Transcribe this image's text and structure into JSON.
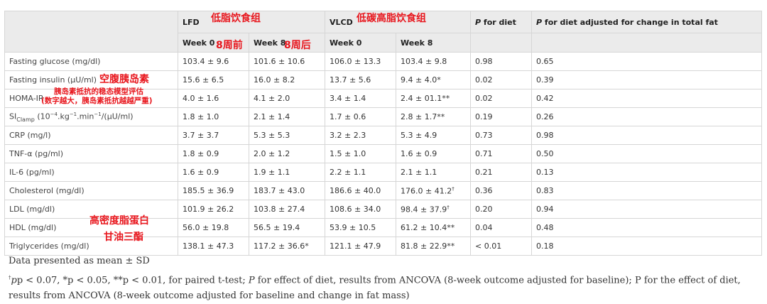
{
  "header": {
    "col_lfd": "LFD",
    "col_vlcd": "VLCD",
    "col_p_diet": "P for diet",
    "col_p_adjusted": "P for diet adjusted for change in total fat",
    "week0": "Week 0",
    "week8": "Week 8"
  },
  "rows": [
    {
      "label": "Fasting glucose (mg/dl)",
      "lfd_w0": "103.4 ± 9.6",
      "lfd_w8": "101.6 ± 10.6",
      "vlcd_w0": "106.0 ± 13.3",
      "vlcd_w8": "103.4 ± 9.8",
      "p_diet": "0.98",
      "p_adj": "0.65"
    },
    {
      "label": "Fasting insulin (µU/ml)",
      "lfd_w0": "15.6 ± 6.5",
      "lfd_w8": "16.0 ± 8.2",
      "vlcd_w0": "13.7 ± 5.6",
      "vlcd_w8": "9.4 ± 4.0*",
      "p_diet": "0.02",
      "p_adj": "0.39"
    },
    {
      "label": "HOMA-IR",
      "lfd_w0": "4.0 ± 1.6",
      "lfd_w8": "4.1 ± 2.0",
      "vlcd_w0": "3.4 ± 1.4",
      "vlcd_w8": "2.4 ± 01.1**",
      "p_diet": "0.02",
      "p_adj": "0.42"
    },
    {
      "label": "SI",
      "label_sub": "Clamp",
      "label_rest": " (10",
      "label_sup1": "−4",
      "label_rest2": ".kg",
      "label_sup2": "−1",
      "label_rest3": ".min",
      "label_sup3": "−1",
      "label_rest4": "/(µU/ml)",
      "lfd_w0": "1.8 ± 1.0",
      "lfd_w8": "2.1 ± 1.4",
      "vlcd_w0": "1.7 ± 0.6",
      "vlcd_w8": "2.8 ± 1.7**",
      "p_diet": "0.19",
      "p_adj": "0.26"
    },
    {
      "label": "CRP (mg/l)",
      "lfd_w0": "3.7 ± 3.7",
      "lfd_w8": "5.3 ± 5.3",
      "vlcd_w0": "3.2 ± 2.3",
      "vlcd_w8": "5.3 ± 4.9",
      "p_diet": "0.73",
      "p_adj": "0.98"
    },
    {
      "label": "TNF-α (pg/ml)",
      "lfd_w0": "1.8 ± 0.9",
      "lfd_w8": "2.0 ± 1.2",
      "vlcd_w0": "1.5 ± 1.0",
      "vlcd_w8": "1.6 ± 0.9",
      "p_diet": "0.71",
      "p_adj": "0.50"
    },
    {
      "label": "IL-6 (pg/ml)",
      "lfd_w0": "1.6 ± 0.9",
      "lfd_w8": "1.9 ± 1.1",
      "vlcd_w0": "2.2 ± 1.1",
      "vlcd_w8": "2.1 ± 1.1",
      "p_diet": "0.21",
      "p_adj": "0.13"
    },
    {
      "label": "Cholesterol (mg/dl)",
      "lfd_w0": "185.5 ± 36.9",
      "lfd_w8": "183.7 ± 43.0",
      "vlcd_w0": "186.6 ± 40.0",
      "vlcd_w8": "176.0 ± 41.2",
      "vlcd_w8_sup": "†",
      "p_diet": "0.36",
      "p_adj": "0.83"
    },
    {
      "label": "LDL (mg/dl)",
      "lfd_w0": "101.9 ± 26.2",
      "lfd_w8": "103.8 ± 27.4",
      "vlcd_w0": "108.6 ± 34.0",
      "vlcd_w8": "98.4 ± 37.9",
      "vlcd_w8_sup": "†",
      "p_diet": "0.20",
      "p_adj": "0.94"
    },
    {
      "label": "HDL (mg/dl)",
      "lfd_w0": "56.0 ± 19.8",
      "lfd_w8": "56.5 ± 19.4",
      "vlcd_w0": "53.9 ± 10.5",
      "vlcd_w8": "61.2 ± 10.4**",
      "p_diet": "0.04",
      "p_adj": "0.48"
    },
    {
      "label": "Triglycerides (mg/dl)",
      "lfd_w0": "138.1 ± 47.3",
      "lfd_w8": "117.2 ± 36.6*",
      "vlcd_w0": "121.1 ± 47.9",
      "vlcd_w8": "81.8 ± 22.9**",
      "p_diet": "< 0.01",
      "p_adj": "0.18"
    }
  ],
  "annotations": {
    "lfd": "低脂饮食组",
    "vlcd": "低碳高脂饮食组",
    "week0": "8周前",
    "week8": "8周后",
    "insulin": "空腹胰岛素",
    "homa_line1": "胰岛素抵抗的稳态模型评估",
    "homa_line2": "(数字越大，胰岛素抵抗越越严重)",
    "hdl": "高密度脂蛋白",
    "tg": "甘油三酯"
  },
  "notes": {
    "line1": "Data presented as mean ± SD",
    "dagger": "†",
    "line2_a": "p < 0.07, *p < 0.05, **p < 0.01, for paired t-test; ",
    "line2_b": "P",
    "line2_c": " for effect of diet, results from ANCOVA (8-week outcome adjusted for baseline); P for the effect of diet, results from ANCOVA (8-week outcome adjusted for baseline and change in fat mass)"
  },
  "colors": {
    "annotation": "#e8161d",
    "header_bg": "#ebebeb",
    "border": "#d6d6d6"
  }
}
